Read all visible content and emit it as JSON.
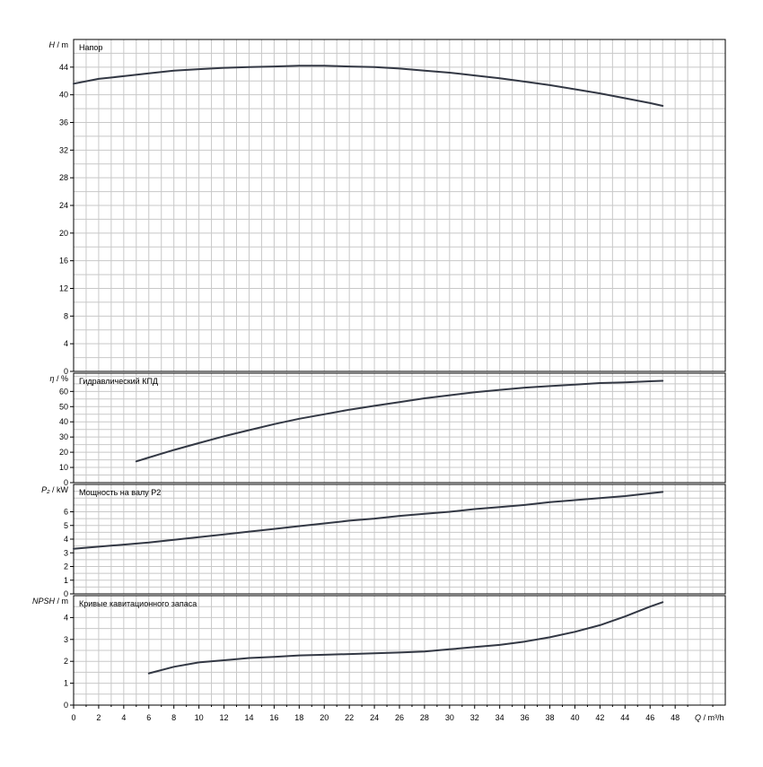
{
  "chart_data": {
    "type": "line",
    "x_axis": {
      "symbol": "Q",
      "unit": "m³/h",
      "range": [
        0,
        52
      ],
      "ticks": [
        0,
        2,
        4,
        6,
        8,
        10,
        12,
        14,
        16,
        18,
        20,
        22,
        24,
        26,
        28,
        30,
        32,
        34,
        36,
        38,
        40,
        42,
        44,
        46,
        48
      ]
    },
    "panels": [
      {
        "id": "head",
        "title": "Напор",
        "symbol": "H",
        "unit": "m",
        "ylim": [
          0,
          48
        ],
        "ticks": [
          0,
          4,
          8,
          12,
          16,
          20,
          24,
          28,
          32,
          36,
          40,
          44
        ],
        "grid": true,
        "x": [
          0,
          2,
          4,
          6,
          8,
          10,
          12,
          14,
          16,
          18,
          20,
          22,
          24,
          26,
          28,
          30,
          32,
          34,
          36,
          38,
          40,
          42,
          44,
          46,
          47
        ],
        "y": [
          41.6,
          42.3,
          42.7,
          43.1,
          43.5,
          43.7,
          43.9,
          44.0,
          44.1,
          44.2,
          44.2,
          44.1,
          44.0,
          43.8,
          43.5,
          43.2,
          42.8,
          42.4,
          41.9,
          41.4,
          40.8,
          40.2,
          39.5,
          38.8,
          38.4
        ]
      },
      {
        "id": "efficiency",
        "title": "Гидравлический КПД",
        "symbol": "η",
        "unit": "%",
        "ylim": [
          0,
          72
        ],
        "ticks": [
          0,
          10,
          20,
          30,
          40,
          50,
          60
        ],
        "grid": true,
        "x": [
          5,
          6,
          8,
          10,
          12,
          14,
          16,
          18,
          20,
          22,
          24,
          26,
          28,
          30,
          32,
          34,
          36,
          38,
          40,
          42,
          44,
          46,
          47
        ],
        "y": [
          14,
          16.5,
          21.5,
          26,
          30.5,
          34.5,
          38.5,
          42,
          45,
          48,
          50.5,
          53,
          55.5,
          57.5,
          59.5,
          61,
          62.5,
          63.5,
          64.5,
          65.5,
          66,
          66.7,
          67
        ]
      },
      {
        "id": "power",
        "title": "Мощность на валу P2",
        "symbol": "P₂",
        "unit": "kW",
        "ylim": [
          0,
          8
        ],
        "ticks": [
          0,
          1,
          2,
          3,
          4,
          5,
          6
        ],
        "grid": true,
        "x": [
          0,
          2,
          4,
          6,
          8,
          10,
          12,
          14,
          16,
          18,
          20,
          22,
          24,
          26,
          28,
          30,
          32,
          34,
          36,
          38,
          40,
          42,
          44,
          46,
          47
        ],
        "y": [
          3.3,
          3.45,
          3.6,
          3.75,
          3.95,
          4.15,
          4.35,
          4.55,
          4.75,
          4.95,
          5.15,
          5.35,
          5.5,
          5.7,
          5.85,
          6.0,
          6.2,
          6.35,
          6.5,
          6.7,
          6.85,
          7.0,
          7.15,
          7.35,
          7.45
        ]
      },
      {
        "id": "npsh",
        "title": "Кривые кавитационного запаса",
        "symbol": "NPSH",
        "unit": "m",
        "ylim": [
          0,
          5
        ],
        "ticks": [
          0,
          1,
          2,
          3,
          4
        ],
        "grid": true,
        "x": [
          6,
          8,
          10,
          12,
          14,
          16,
          18,
          20,
          22,
          24,
          26,
          28,
          30,
          32,
          34,
          36,
          38,
          40,
          42,
          44,
          46,
          47
        ],
        "y": [
          1.45,
          1.75,
          1.95,
          2.05,
          2.15,
          2.2,
          2.27,
          2.3,
          2.33,
          2.37,
          2.4,
          2.45,
          2.55,
          2.65,
          2.75,
          2.9,
          3.1,
          3.35,
          3.65,
          4.05,
          4.5,
          4.7
        ]
      }
    ]
  }
}
